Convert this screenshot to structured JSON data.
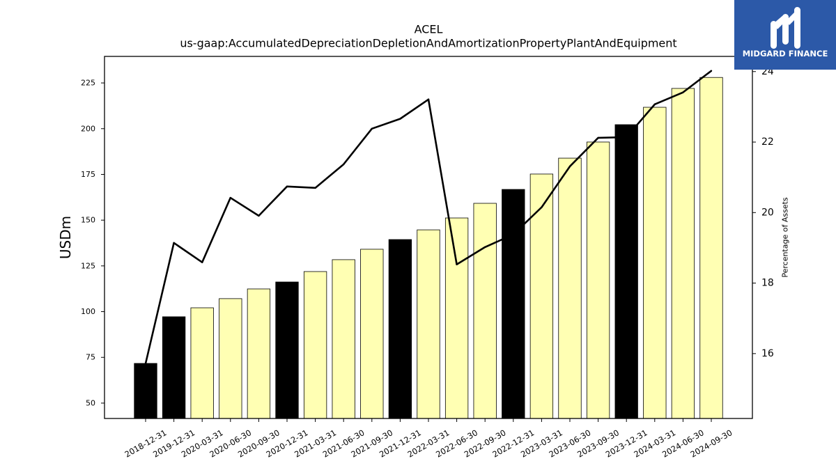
{
  "logo": {
    "text": "MIDGARD FINANCE",
    "background": "#2c59a8",
    "foreground": "#ffffff"
  },
  "chart_data": {
    "type": "bar",
    "title": "ACEL",
    "subtitle": "us-gaap:AccumulatedDepreciationDepletionAndAmortizationPropertyPlantAndEquipment",
    "ylabel": "USDm",
    "y2label": "Percentage of Assets",
    "categories": [
      "2018-12-31",
      "2019-12-31",
      "2020-03-31",
      "2020-06-30",
      "2020-09-30",
      "2020-12-31",
      "2021-03-31",
      "2021-06-30",
      "2021-09-30",
      "2021-12-31",
      "2022-03-31",
      "2022-06-30",
      "2022-09-30",
      "2022-12-31",
      "2023-03-31",
      "2023-06-30",
      "2023-09-30",
      "2023-12-31",
      "2024-03-31",
      "2024-06-30",
      "2024-09-30"
    ],
    "series": [
      {
        "type": "bar",
        "axis": "left",
        "values": [
          71.7,
          97.2,
          102.1,
          107.1,
          112.4,
          116.2,
          121.9,
          128.4,
          134.1,
          139.4,
          144.7,
          151.2,
          159.2,
          166.8,
          175.2,
          183.9,
          192.7,
          202.2,
          211.7,
          222.0,
          228.0
        ],
        "fills": [
          "#000000",
          "#000000",
          "#ffffb3",
          "#ffffb3",
          "#ffffb3",
          "#000000",
          "#ffffb3",
          "#ffffb3",
          "#ffffb3",
          "#000000",
          "#ffffb3",
          "#ffffb3",
          "#ffffb3",
          "#000000",
          "#ffffb3",
          "#ffffb3",
          "#ffffb3",
          "#000000",
          "#ffffb3",
          "#ffffb3",
          "#ffffb3"
        ],
        "edge_color": "#000000"
      },
      {
        "type": "line",
        "axis": "right",
        "color": "#000000",
        "values": [
          15.72,
          19.14,
          18.59,
          20.42,
          19.91,
          20.74,
          20.7,
          21.37,
          22.38,
          22.66,
          23.21,
          18.53,
          19.02,
          19.38,
          20.15,
          21.31,
          22.12,
          22.14,
          23.07,
          23.41,
          24.02
        ]
      }
    ],
    "ylim": [
      41.6,
      239.5
    ],
    "y2lim": [
      14.16,
      24.43
    ],
    "yticks": [
      50,
      75,
      100,
      125,
      150,
      175,
      200,
      225
    ],
    "y2ticks": [
      16,
      18,
      20,
      22,
      24
    ],
    "grid": false,
    "legend": "none"
  }
}
